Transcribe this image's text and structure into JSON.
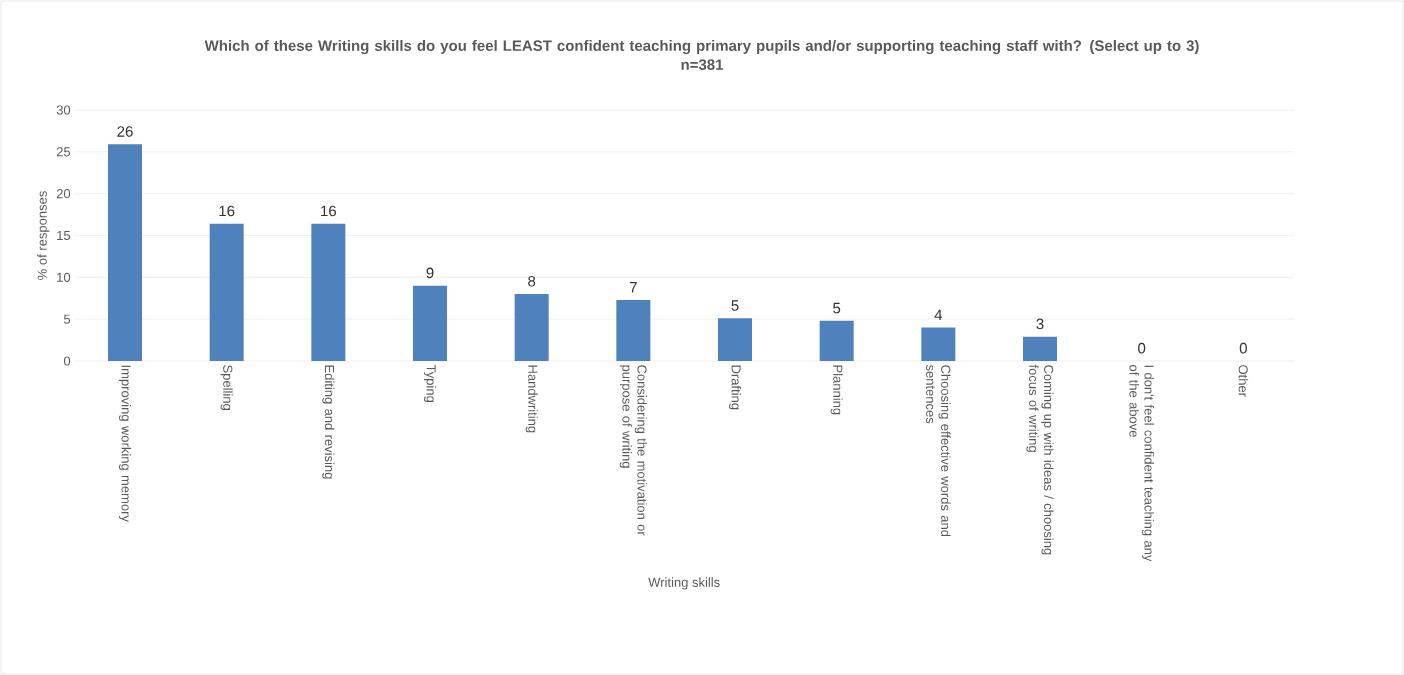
{
  "chart_data": {
    "type": "bar",
    "title": "Which of these Writing skills do you feel LEAST confident teaching primary pupils and/or supporting teaching staff with? (Select up to 3) n=381",
    "xlabel": "Writing skills",
    "ylabel": "% of responses",
    "categories": [
      "Improving working memory",
      "Spelling",
      "Editing and revising",
      "Typing",
      "Handwriting",
      "Considering the motivation or purpose of writing",
      "Drafting",
      "Planning",
      "Choosing effective words and sentences",
      "Coming up with ideas / choosing focus of writing",
      "I don't feel confident teaching any of the above",
      "Other"
    ],
    "values": [
      25.9,
      16.4,
      16.4,
      9,
      8,
      7.3,
      5.1,
      4.8,
      4,
      2.9,
      0,
      0
    ],
    "value_labels": [
      "26",
      "16",
      "16",
      "9",
      "8",
      "7",
      "5",
      "5",
      "4",
      "3",
      "0",
      "0"
    ],
    "color": "#4f81bd",
    "ylim": [
      0,
      30
    ],
    "yticks": [
      0,
      5,
      10,
      15,
      20,
      25,
      30
    ],
    "grid": "y"
  }
}
